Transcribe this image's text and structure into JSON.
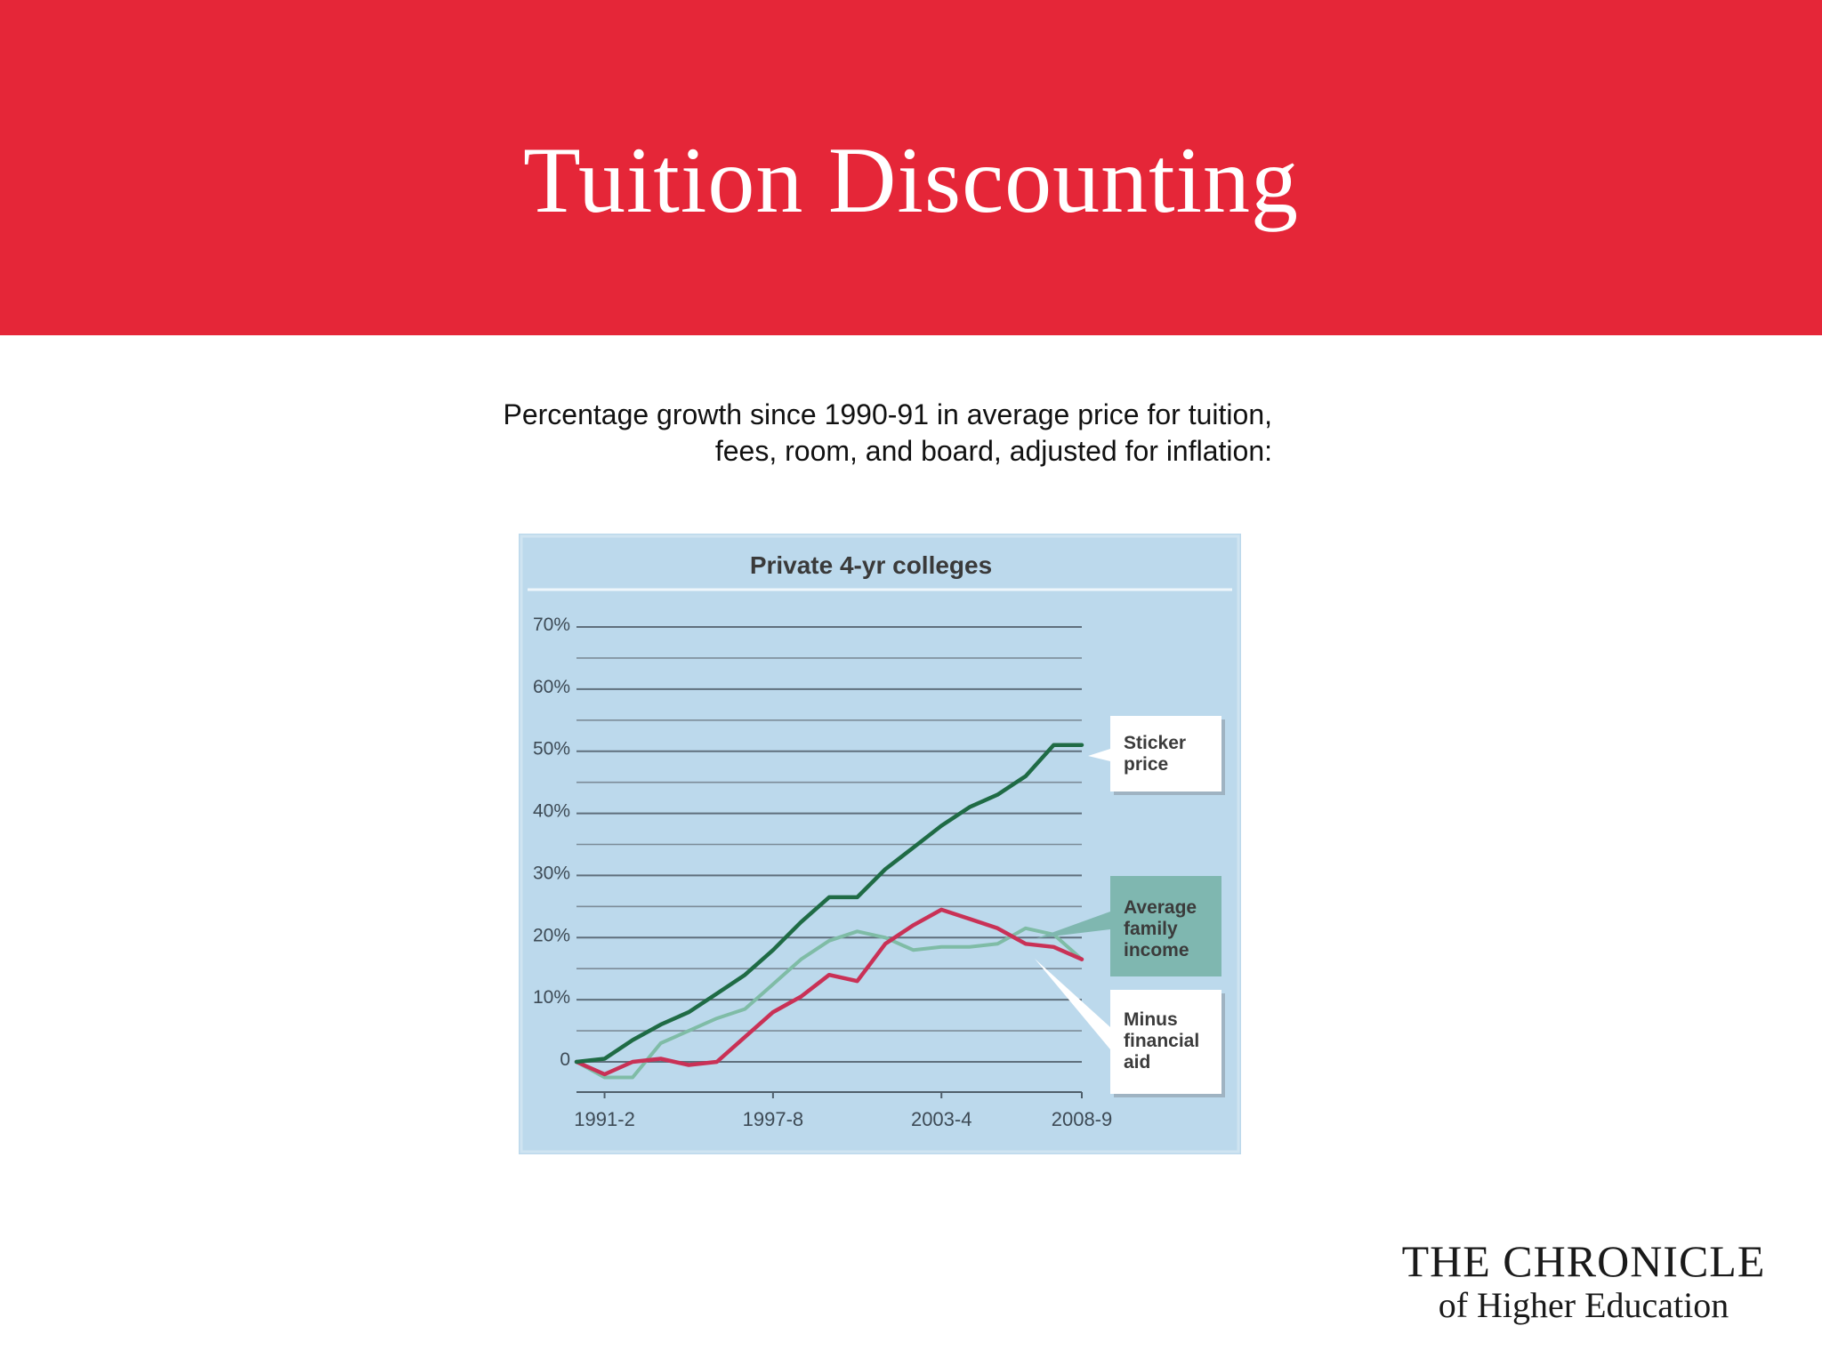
{
  "slide": {
    "title": "Tuition Discounting",
    "subtitle_line1": "Percentage growth since 1990-91 in average price for tuition,",
    "subtitle_line2": "fees, room, and board, adjusted for inflation:"
  },
  "logo": {
    "line1": "THE CHRONICLE",
    "line2": "of Higher Education"
  },
  "colors": {
    "banner": "#e52638",
    "chart_background": "#bcd9ec",
    "sticker_price": "#1f6b45",
    "average_family_income": "#7fbca6",
    "minus_financial_aid": "#c93156",
    "income_label_box": "#7fb7b0"
  },
  "chart_data": {
    "type": "line",
    "title": "Private 4-yr colleges",
    "x_tick_labels": [
      "1991-2",
      "1997-8",
      "2003-4",
      "2008-9"
    ],
    "x_tick_positions": [
      1,
      7,
      13,
      18
    ],
    "xlim": [
      0,
      18
    ],
    "ylim": [
      0,
      70
    ],
    "y_ticks": [
      0,
      10,
      20,
      30,
      40,
      50,
      60,
      70
    ],
    "y_tick_labels": [
      "0",
      "10%",
      "20%",
      "30%",
      "40%",
      "50%",
      "60%",
      "70%"
    ],
    "grid": true,
    "series": [
      {
        "name": "Sticker price",
        "color": "#1f6b45",
        "x": [
          0,
          1,
          2,
          3,
          4,
          5,
          6,
          7,
          8,
          9,
          10,
          11,
          12,
          13,
          14,
          15,
          16,
          17,
          18
        ],
        "y": [
          0,
          0.5,
          3.5,
          6,
          8,
          11,
          14,
          18,
          22.5,
          26.5,
          26.5,
          31,
          34.5,
          38,
          41,
          43,
          46,
          51,
          51
        ]
      },
      {
        "name": "Average family income",
        "color": "#7fbca6",
        "x": [
          0,
          1,
          2,
          3,
          4,
          5,
          6,
          7,
          8,
          9,
          10,
          11,
          12,
          13,
          14,
          15,
          16,
          17,
          18
        ],
        "y": [
          0,
          -2.5,
          -2.5,
          3,
          5,
          7,
          8.5,
          12.5,
          16.5,
          19.5,
          21,
          20,
          18,
          18.5,
          18.5,
          19,
          21.5,
          20.5,
          16.5
        ]
      },
      {
        "name": "Minus financial aid",
        "color": "#c93156",
        "x": [
          0,
          1,
          2,
          3,
          4,
          5,
          6,
          7,
          8,
          9,
          10,
          11,
          12,
          13,
          14,
          15,
          16,
          17,
          18
        ],
        "y": [
          0,
          -2,
          0,
          0.5,
          -0.5,
          0,
          4,
          8,
          10.5,
          14,
          13,
          19,
          22,
          24.5,
          23,
          21.5,
          19,
          18.5,
          16.5
        ]
      }
    ],
    "annotations": [
      {
        "series": "Sticker price",
        "text": "Sticker price"
      },
      {
        "series": "Average family income",
        "text": "Average family income"
      },
      {
        "series": "Minus financial aid",
        "text": "Minus financial aid"
      }
    ]
  }
}
